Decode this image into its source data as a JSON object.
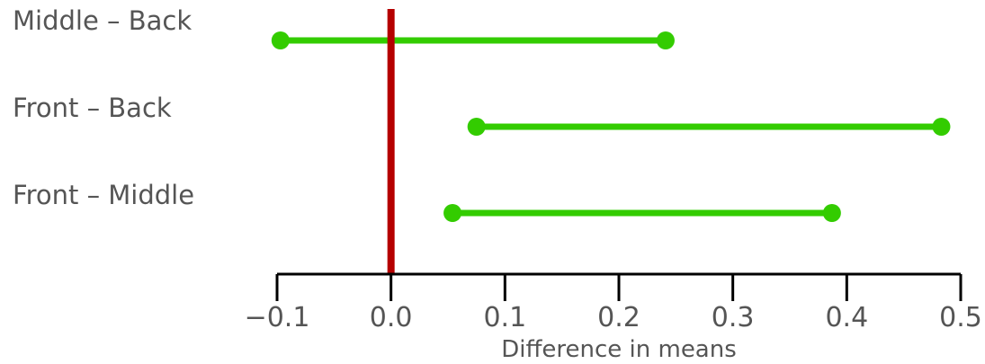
{
  "chart_data": {
    "type": "interval",
    "title": "",
    "xlabel": "Difference in means",
    "ylabel": "",
    "xlim": [
      -0.1,
      0.5
    ],
    "x_ticks": [
      "-0.1",
      "0.0",
      "0.1",
      "0.2",
      "0.3",
      "0.4",
      "0.5"
    ],
    "x_tick_values": [
      -0.1,
      0.0,
      0.1,
      0.2,
      0.3,
      0.4,
      0.5
    ],
    "reference_line": 0.0,
    "grid": false,
    "categories": [
      "Middle – Back",
      "Front – Back",
      "Front – Middle"
    ],
    "intervals": [
      {
        "label": "Middle – Back",
        "lower": -0.097,
        "upper": 0.241
      },
      {
        "label": "Front – Back",
        "lower": 0.075,
        "upper": 0.483
      },
      {
        "label": "Front – Middle",
        "lower": 0.054,
        "upper": 0.387
      }
    ],
    "colors": {
      "interval": "#33cc00",
      "reference": "#b50000",
      "axis": "#000000",
      "text": "#555555"
    }
  }
}
